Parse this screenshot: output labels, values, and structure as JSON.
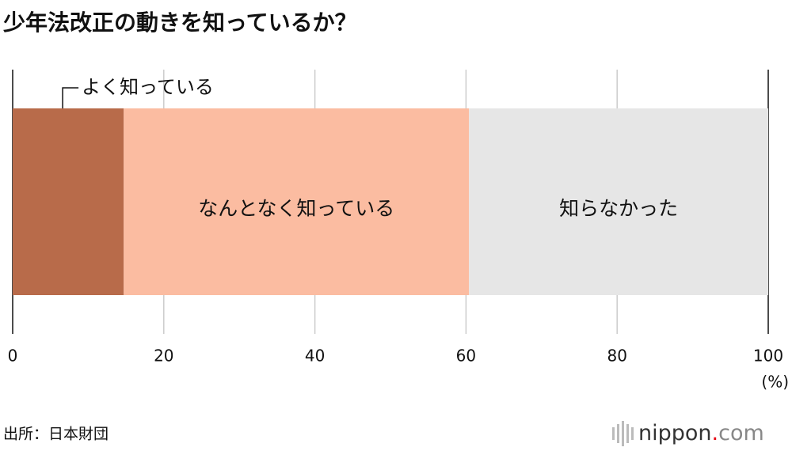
{
  "chart_data": {
    "type": "bar",
    "orientation": "horizontal",
    "stacked": true,
    "title": "少年法改正の動きを知っているか？",
    "categories": [
      null
    ],
    "series": [
      {
        "name": "よく知っている",
        "color": "#b86b4a",
        "values": [
          14.7
        ]
      },
      {
        "name": "なんとなく知っている",
        "color": "#fbbca1",
        "values": [
          45.7
        ]
      },
      {
        "name": "知らなかった",
        "color": "#e6e6e6",
        "values": [
          39.6
        ]
      }
    ],
    "xlim": [
      0,
      100
    ],
    "xticks": [
      0,
      20,
      40,
      60,
      80,
      100
    ],
    "xlabel": "(%)",
    "grid": true,
    "source": "出所：日本財団",
    "logo": {
      "name": "nippon",
      "dot": ".",
      "tld": "com"
    }
  }
}
